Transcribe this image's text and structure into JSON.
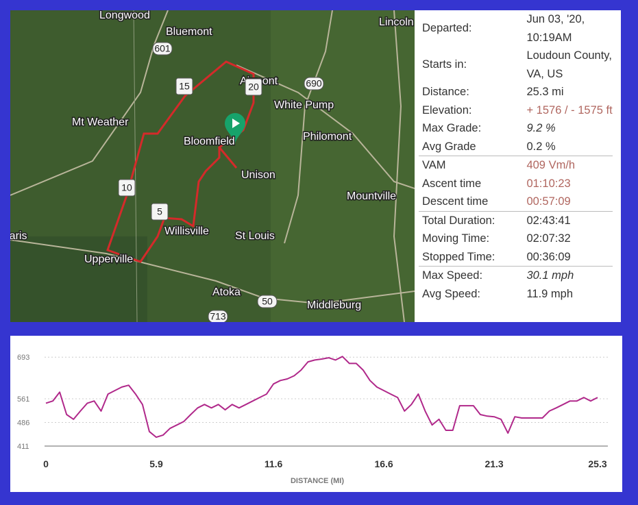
{
  "map": {
    "labels": [
      "Longwood",
      "Bluemont",
      "601",
      "Lincoln",
      "Airmont",
      "15",
      "20",
      "690",
      "White Pump",
      "Mt Weather",
      "Bloomfield",
      "Philomont",
      "Unison",
      "10",
      "Mountville",
      "5",
      "Willisville",
      "St Louis",
      "Paris",
      "Upperville",
      "Atoka",
      "50",
      "Middleburg",
      "713"
    ]
  },
  "stats": [
    [
      {
        "label": "Departed:",
        "value": "Jun 03, '20, 10:19AM"
      },
      {
        "label": "Starts in:",
        "value": "Loudoun County, VA, US"
      },
      {
        "label": "Distance:",
        "value": "25.3 mi"
      },
      {
        "label": "Elevation:",
        "value": "+ 1576 / - 1575 ft"
      },
      {
        "label": "Max Grade:",
        "value": "9.2 %"
      },
      {
        "label": "Avg Grade",
        "value": "0.2 %"
      }
    ],
    [
      {
        "label": "VAM",
        "value": "409 Vm/h"
      },
      {
        "label": "Ascent time",
        "value": "01:10:23"
      },
      {
        "label": "Descent time",
        "value": "00:57:09"
      }
    ],
    [
      {
        "label": "Total Duration:",
        "value": "02:43:41"
      },
      {
        "label": "Moving Time:",
        "value": "02:07:32"
      },
      {
        "label": "Stopped Time:",
        "value": "00:36:09"
      }
    ],
    [
      {
        "label": "Max Speed:",
        "value": "30.1 mph"
      },
      {
        "label": "Avg Speed:",
        "value": "11.9 mph"
      }
    ]
  ],
  "chart_data": {
    "type": "line",
    "x_label": "DISTANCE (MI)",
    "color": "#b0288a",
    "values": [
      547,
      554,
      582,
      511,
      496,
      522,
      547,
      554,
      522,
      576,
      587,
      598,
      604,
      576,
      543,
      457,
      439,
      446,
      467,
      478,
      489,
      511,
      532,
      543,
      532,
      543,
      526,
      543,
      532,
      543,
      554,
      565,
      576,
      608,
      619,
      624,
      634,
      652,
      678,
      684,
      687,
      691,
      684,
      695,
      673,
      673,
      652,
      619,
      598,
      587,
      576,
      565,
      522,
      543,
      576,
      522,
      478,
      496,
      461,
      461,
      539,
      539,
      539,
      511,
      506,
      504,
      496,
      452,
      504,
      500,
      500,
      500,
      500,
      522,
      532,
      543,
      554,
      554,
      565,
      554,
      565
    ],
    "xlim": [
      0,
      80
    ],
    "xticks": [
      {
        "value": 0,
        "label": "0"
      },
      {
        "value": 16,
        "label": "5.9"
      },
      {
        "value": 33,
        "label": "11.6"
      },
      {
        "value": 49,
        "label": "16.6"
      },
      {
        "value": 65,
        "label": "21.3"
      },
      {
        "value": 80,
        "label": "25.3"
      }
    ],
    "ylim": [
      411,
      700
    ],
    "yticks": [
      411,
      486,
      561,
      693
    ],
    "grid": true
  }
}
